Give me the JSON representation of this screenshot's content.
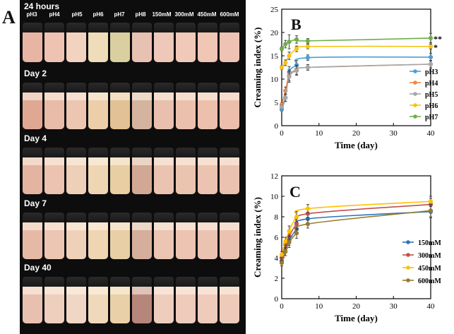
{
  "panels": {
    "a": "A",
    "b": "B",
    "c": "C"
  },
  "photo": {
    "strips": [
      {
        "title": "24 hours",
        "labels": [
          "pH3",
          "pH4",
          "pH5",
          "pH6",
          "pH7",
          "pH8",
          "150mM",
          "300mM",
          "450mM",
          "600mM"
        ],
        "colors": [
          "#e8b5a4",
          "#efc3b2",
          "#f1d3c0",
          "#efdcb8",
          "#d9cfa0",
          "#e7c1b1",
          "#eec8b8",
          "#f0c9b8",
          "#f0c6b4",
          "#efc3b3"
        ]
      },
      {
        "title": "Day 2",
        "labels": [],
        "colors": [
          "#e0a793",
          "#e8bca9",
          "#ecc6b1",
          "#eccfa9",
          "#e3c196",
          "#d4b49f",
          "#e9c0ae",
          "#ebc1ae",
          "#ecc0ad",
          "#ebbfac"
        ]
      },
      {
        "title": "Day 4",
        "labels": [],
        "colors": [
          "#e3b4a1",
          "#ebc3b0",
          "#eecfb8",
          "#efd6b3",
          "#e9cea4",
          "#d2a895",
          "#ebc4b1",
          "#ebc4b0",
          "#ecc3b0",
          "#ebc2af"
        ]
      },
      {
        "title": "Day 7",
        "labels": [],
        "colors": [
          "#e6b9a6",
          "#ecc6b2",
          "#efd1ba",
          "#efd5b2",
          "#e8cfa6",
          "#d5ae9c",
          "#ecc5b3",
          "#ecc4b1",
          "#ecc3b1",
          "#ebc2b0"
        ]
      },
      {
        "title": "Day 40",
        "labels": [],
        "colors": [
          "#e8c0b0",
          "#eecebd",
          "#f0d6c4",
          "#f0d9bb",
          "#ead0a8",
          "#b7867a",
          "#efcdbd",
          "#eecbbb",
          "#eecbba",
          "#edcab9"
        ]
      }
    ]
  },
  "chart_data": [
    {
      "type": "line",
      "ylabel": "Creaming index (%)",
      "xlabel": "Time (day)",
      "xlim": [
        0,
        40
      ],
      "ylim": [
        0,
        25
      ],
      "xticks": [
        0,
        10,
        20,
        30,
        40
      ],
      "yticks": [
        0,
        5,
        10,
        15,
        20,
        25
      ],
      "legend_position": "right",
      "series": [
        {
          "name": "pH3",
          "color": "#4a9fd8",
          "x": [
            0,
            1,
            2,
            4,
            7,
            40
          ],
          "y": [
            3.5,
            6.0,
            11.5,
            13.0,
            14.6,
            14.7
          ],
          "err": [
            0.4,
            0.8,
            1.2,
            1.0,
            0.6,
            0.8
          ]
        },
        {
          "name": "pH4",
          "color": "#ee8744",
          "x": [
            0,
            1,
            2,
            4,
            7,
            40
          ],
          "y": [
            4.5,
            7.5,
            10.8,
            12.0,
            12.5,
            13.2
          ],
          "err": [
            0.4,
            0.8,
            1.2,
            1.0,
            0.6,
            0.8
          ]
        },
        {
          "name": "pH5",
          "color": "#a6a6a6",
          "x": [
            0,
            1,
            2,
            4,
            7,
            40
          ],
          "y": [
            4.0,
            6.0,
            10.5,
            11.8,
            12.5,
            13.2
          ],
          "err": [
            0.4,
            0.8,
            1.2,
            1.0,
            0.6,
            0.8
          ]
        },
        {
          "name": "pH6",
          "color": "#f6c316",
          "x": [
            0,
            1,
            2,
            4,
            7,
            40
          ],
          "y": [
            12.5,
            13.5,
            15.0,
            16.5,
            17.0,
            17.0
          ],
          "err": [
            0.4,
            0.6,
            0.8,
            0.6,
            0.5,
            0.5
          ]
        },
        {
          "name": "pH7",
          "color": "#70ad47",
          "x": [
            0,
            1,
            2,
            4,
            7,
            40
          ],
          "y": [
            16.5,
            17.5,
            18.0,
            18.5,
            18.2,
            18.8
          ],
          "err": [
            0.4,
            0.8,
            1.5,
            0.8,
            0.5,
            1.0
          ]
        }
      ],
      "annotations": [
        {
          "text": "**",
          "series": "pH7"
        },
        {
          "text": "*",
          "series": "pH6"
        }
      ]
    },
    {
      "type": "line",
      "ylabel": "Creaming index (%)",
      "xlabel": "Time (day)",
      "xlim": [
        0,
        40
      ],
      "ylim": [
        0,
        12
      ],
      "xticks": [
        0,
        10,
        20,
        30,
        40
      ],
      "yticks": [
        0,
        2,
        4,
        6,
        8,
        10,
        12
      ],
      "legend_position": "bottom-right",
      "series": [
        {
          "name": "150mM",
          "color": "#2e75b6",
          "x": [
            0,
            1,
            2,
            4,
            7,
            40
          ],
          "y": [
            3.7,
            4.9,
            5.7,
            6.8,
            7.8,
            8.5
          ],
          "err": [
            0.3,
            0.4,
            0.5,
            0.5,
            0.4,
            0.6
          ]
        },
        {
          "name": "300mM",
          "color": "#c0504d",
          "x": [
            0,
            1,
            2,
            4,
            7,
            40
          ],
          "y": [
            4.0,
            5.3,
            6.1,
            7.3,
            8.3,
            9.2
          ],
          "err": [
            0.3,
            0.4,
            0.5,
            0.5,
            0.4,
            0.6
          ]
        },
        {
          "name": "450mM",
          "color": "#ffc000",
          "x": [
            0,
            1,
            2,
            4,
            7,
            40
          ],
          "y": [
            4.3,
            5.6,
            6.6,
            8.0,
            8.8,
            9.5
          ],
          "err": [
            0.3,
            0.4,
            0.5,
            0.5,
            0.4,
            0.5
          ]
        },
        {
          "name": "600mM",
          "color": "#997a2e",
          "x": [
            0,
            1,
            2,
            4,
            7,
            40
          ],
          "y": [
            3.5,
            4.6,
            5.5,
            6.4,
            7.3,
            8.6
          ],
          "err": [
            0.3,
            0.4,
            0.5,
            0.5,
            0.4,
            0.6
          ]
        }
      ]
    }
  ]
}
